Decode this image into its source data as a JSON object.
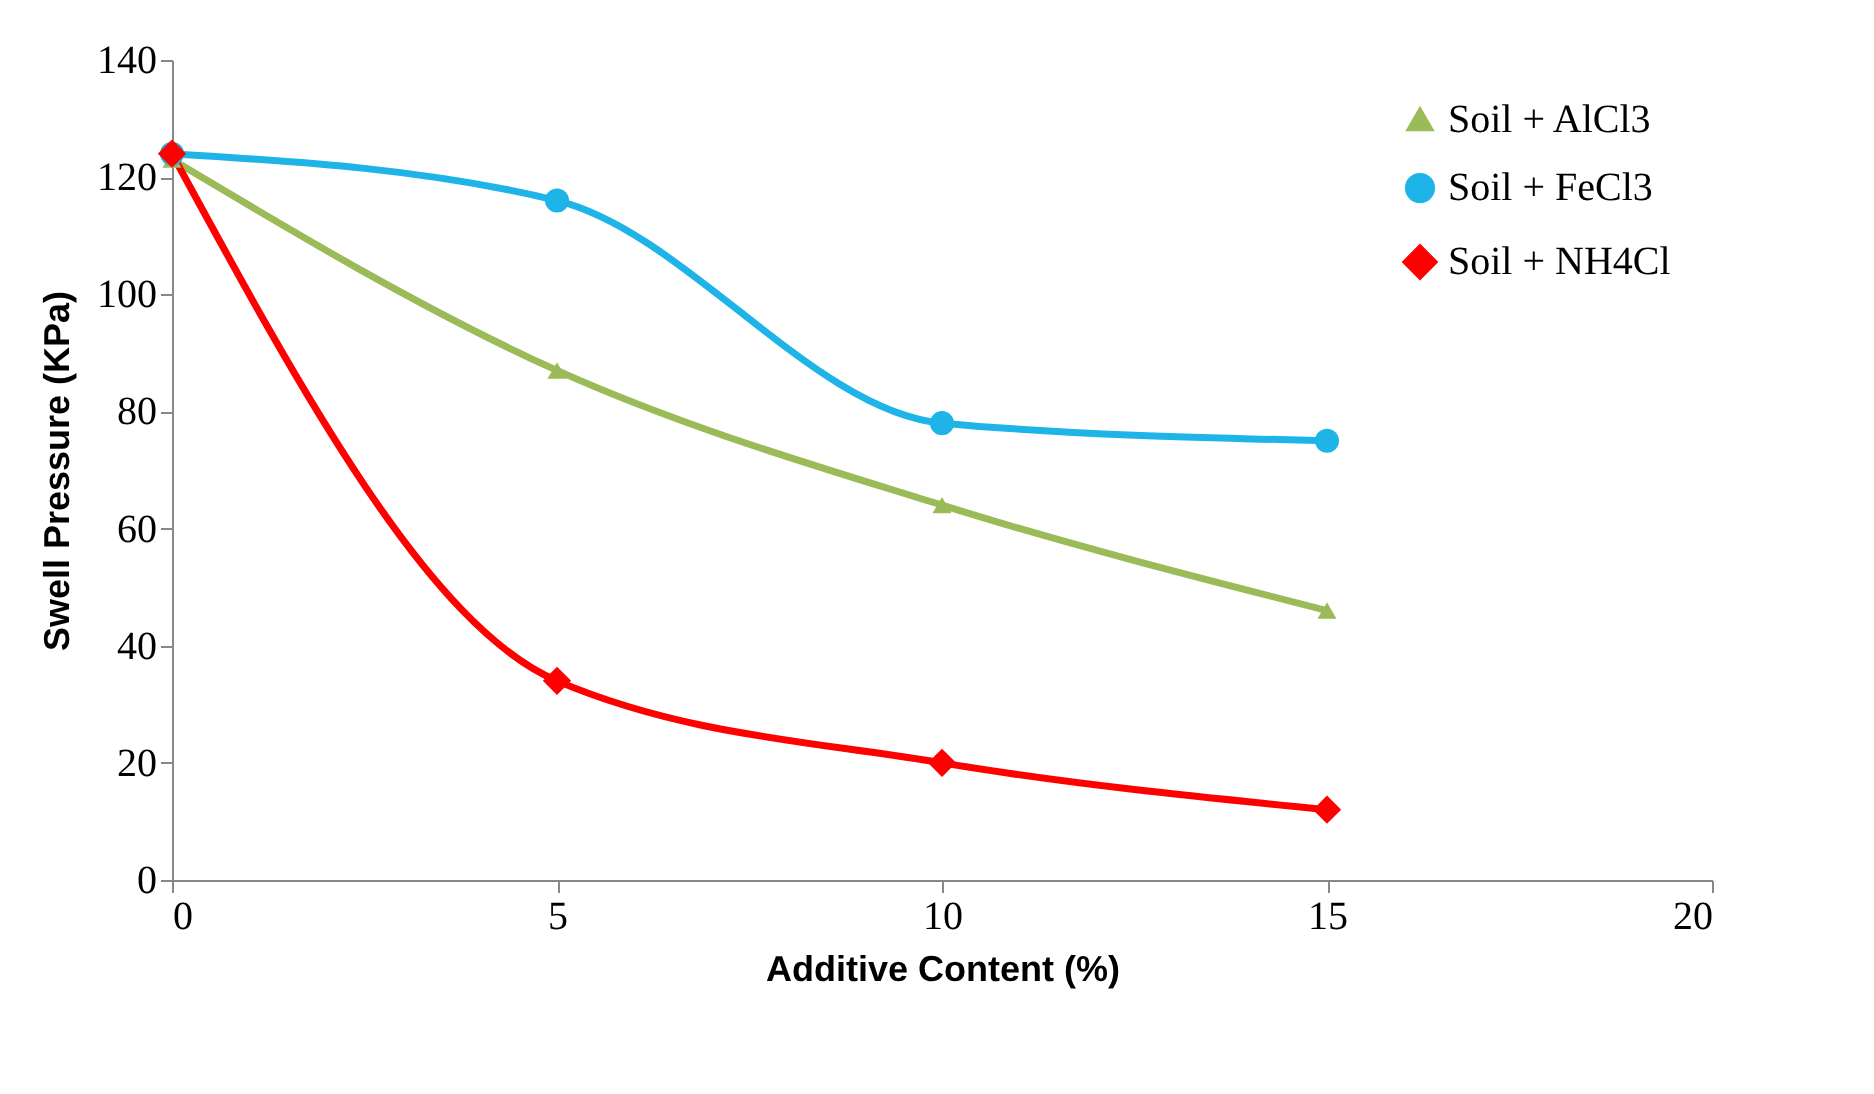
{
  "chart_data": {
    "type": "line",
    "xlabel": "Additive Content (%)",
    "ylabel": "Swell Pressure (KPa)",
    "x": [
      0,
      5,
      10,
      15
    ],
    "series": [
      {
        "name": "Soil + AlCl3",
        "color": "#9bbb59",
        "marker": "triangle",
        "values": [
          123,
          87,
          64,
          46
        ]
      },
      {
        "name": "Soil + FeCl3",
        "color": "#1fb4e8",
        "marker": "circle",
        "values": [
          124,
          116,
          78,
          75
        ]
      },
      {
        "name": "Soil + NH4Cl",
        "color": "#ff0000",
        "marker": "diamond",
        "values": [
          124,
          34,
          20,
          12
        ]
      }
    ],
    "xlim": [
      0,
      20
    ],
    "xticks": [
      0,
      5,
      10,
      15,
      20
    ],
    "ylim": [
      0,
      140
    ],
    "yticks": [
      0,
      20,
      40,
      60,
      80,
      100,
      120,
      140
    ],
    "grid": false,
    "legend": "top right"
  }
}
